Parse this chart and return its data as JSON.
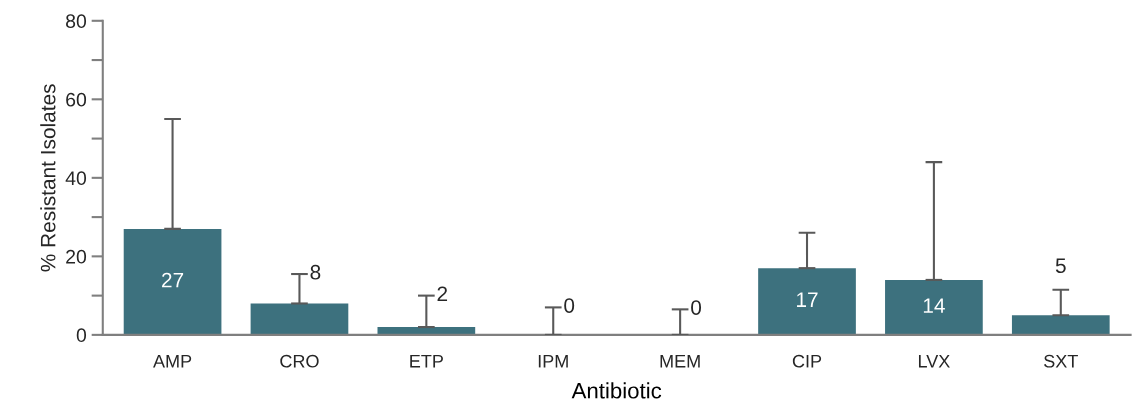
{
  "chart_data": {
    "type": "bar",
    "xlabel": "Antibiotic",
    "ylabel": "% Resistant Isolates",
    "categories": [
      "AMP",
      "CRO",
      "ETP",
      "IPM",
      "MEM",
      "CIP",
      "LVX",
      "SXT"
    ],
    "values": [
      27,
      8,
      2,
      0,
      0,
      17,
      14,
      5
    ],
    "errors": [
      [
        27,
        55
      ],
      [
        8,
        15.5
      ],
      [
        2,
        10
      ],
      [
        0,
        7
      ],
      [
        0,
        6.5
      ],
      [
        17,
        26
      ],
      [
        14,
        44
      ],
      [
        5,
        11.5
      ]
    ],
    "color": "#3d717e",
    "ylim": [
      0,
      80
    ],
    "yticks": [
      0,
      20,
      40,
      60,
      80
    ],
    "data_labels": true,
    "grid": false,
    "legend": false
  }
}
